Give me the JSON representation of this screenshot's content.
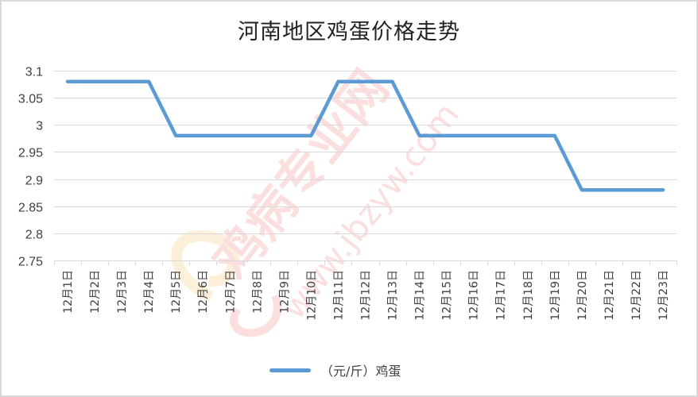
{
  "chart_data": {
    "type": "line",
    "title": "河南地区鸡蛋价格走势",
    "xlabel": "",
    "ylabel": "",
    "ylim": [
      2.75,
      3.1
    ],
    "yticks": [
      "3.1",
      "3.05",
      "3",
      "2.95",
      "2.9",
      "2.85",
      "2.8",
      "2.75"
    ],
    "grid": true,
    "legend_position": "bottom",
    "categories": [
      "12月1日",
      "12月2日",
      "12月3日",
      "12月4日",
      "12月5日",
      "12月6日",
      "12月7日",
      "12月8日",
      "12月9日",
      "12月10日",
      "12月11日",
      "12月12日",
      "12月13日",
      "12月14日",
      "12月15日",
      "12月16日",
      "12月17日",
      "12月18日",
      "12月19日",
      "12月20日",
      "12月21日",
      "12月22日",
      "12月23日"
    ],
    "series": [
      {
        "name": "（元/斤）鸡蛋",
        "color": "#5b9bd5",
        "values": [
          3.08,
          3.08,
          3.08,
          3.08,
          2.98,
          2.98,
          2.98,
          2.98,
          2.98,
          2.98,
          3.08,
          3.08,
          3.08,
          2.98,
          2.98,
          2.98,
          2.98,
          2.98,
          2.98,
          2.88,
          2.88,
          2.88,
          2.88
        ]
      }
    ]
  },
  "watermark": {
    "site_name": "鸡病专业网",
    "url": "www.jbzyw.com"
  }
}
